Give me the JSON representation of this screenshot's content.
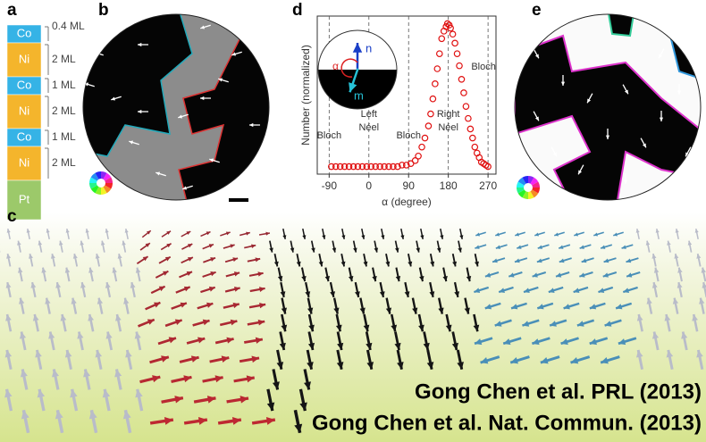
{
  "panel_labels": [
    "a",
    "b",
    "c",
    "d",
    "e"
  ],
  "stack": {
    "layers": [
      {
        "name": "Co",
        "thickness": "0.4 ML"
      },
      {
        "name": "Ni",
        "thickness": "2 ML"
      },
      {
        "name": "Co",
        "thickness": "1 ML"
      },
      {
        "name": "Ni",
        "thickness": "2 ML"
      },
      {
        "name": "Co",
        "thickness": "1 ML"
      },
      {
        "name": "Ni",
        "thickness": "2 ML"
      },
      {
        "name": "Pt"
      }
    ]
  },
  "chart_data": {
    "type": "scatter",
    "color": "#e01010",
    "x_label": "α (degree)",
    "y_label": "Number (normalized)",
    "xlim": [
      -117,
      288
    ],
    "xticks": [
      -90,
      0,
      90,
      180,
      270
    ],
    "ylim": [
      0,
      1.05
    ],
    "grid": true,
    "x": [
      -85,
      -75,
      -65,
      -55,
      -45,
      -35,
      -25,
      -15,
      -5,
      5,
      15,
      25,
      35,
      45,
      55,
      65,
      75,
      85,
      95,
      105,
      112,
      120,
      127,
      135,
      140,
      145,
      150,
      155,
      160,
      165,
      170,
      175,
      178,
      182,
      185,
      190,
      195,
      200,
      205,
      210,
      215,
      220,
      225,
      230,
      235,
      240,
      245,
      250,
      255,
      260,
      265,
      270
    ],
    "values": [
      0.05,
      0.05,
      0.05,
      0.05,
      0.05,
      0.05,
      0.05,
      0.05,
      0.05,
      0.05,
      0.05,
      0.05,
      0.05,
      0.05,
      0.05,
      0.05,
      0.06,
      0.06,
      0.07,
      0.09,
      0.12,
      0.18,
      0.24,
      0.32,
      0.4,
      0.5,
      0.6,
      0.7,
      0.8,
      0.9,
      0.95,
      0.98,
      1.0,
      0.99,
      0.97,
      0.93,
      0.87,
      0.8,
      0.72,
      0.63,
      0.54,
      0.45,
      0.37,
      0.3,
      0.24,
      0.18,
      0.14,
      0.11,
      0.08,
      0.07,
      0.06,
      0.05
    ],
    "annotations": [
      {
        "lines": [
          "Bloch"
        ]
      },
      {
        "lines": [
          "Left",
          "Néel"
        ]
      },
      {
        "lines": [
          "Bloch"
        ]
      },
      {
        "lines": [
          "Right",
          "Néel"
        ]
      },
      {
        "lines": [
          "Bloch"
        ]
      }
    ],
    "inset": {
      "n": "n",
      "m": "m",
      "alpha": "α"
    }
  },
  "captions": [
    "Gong Chen et al. PRL (2013)",
    "Gong Chen et al. Nat. Commun. (2013)"
  ]
}
